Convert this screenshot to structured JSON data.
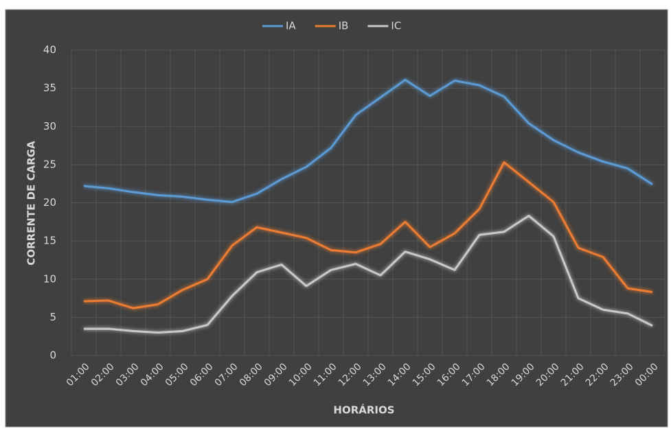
{
  "chart_data": {
    "type": "line",
    "x_label": "HORÁRIOS",
    "y_label": "CORRENTE DE CARGA",
    "categories": [
      "01:00",
      "02:00",
      "03:00",
      "04:00",
      "05:00",
      "06:00",
      "07:00",
      "08:00",
      "09:00",
      "10:00",
      "11:00",
      "12:00",
      "13:00",
      "14:00",
      "15:00",
      "16:00",
      "17:00",
      "18:00",
      "19:00",
      "20:00",
      "21:00",
      "22:00",
      "23:00",
      "00:00"
    ],
    "series": [
      {
        "name": "IA",
        "color": "#5b9bd5",
        "values": [
          22.2,
          21.9,
          21.4,
          21.0,
          20.8,
          20.4,
          20.1,
          21.2,
          23.1,
          24.7,
          27.2,
          31.5,
          33.8,
          36.1,
          34.0,
          36.0,
          35.4,
          33.9,
          30.4,
          28.2,
          26.6,
          25.4,
          24.5,
          22.4
        ]
      },
      {
        "name": "IB",
        "color": "#ed7d31",
        "values": [
          7.1,
          7.2,
          6.2,
          6.7,
          8.6,
          10.0,
          14.4,
          16.8,
          16.1,
          15.4,
          13.8,
          13.5,
          14.6,
          17.5,
          14.2,
          16.0,
          19.2,
          25.3,
          22.7,
          20.1,
          14.1,
          12.9,
          8.8,
          8.3
        ]
      },
      {
        "name": "IC",
        "color": "#c9c9c9",
        "values": [
          3.5,
          3.5,
          3.2,
          3.0,
          3.2,
          4.0,
          7.8,
          10.9,
          11.9,
          9.1,
          11.2,
          12.0,
          10.5,
          13.6,
          12.6,
          11.2,
          15.8,
          16.2,
          18.3,
          15.6,
          7.5,
          6.0,
          5.5,
          3.9
        ]
      }
    ],
    "ylim": [
      0,
      40
    ],
    "yticks": [
      0,
      5,
      10,
      15,
      20,
      25,
      30,
      35,
      40
    ],
    "grid": true,
    "legend": "top"
  }
}
